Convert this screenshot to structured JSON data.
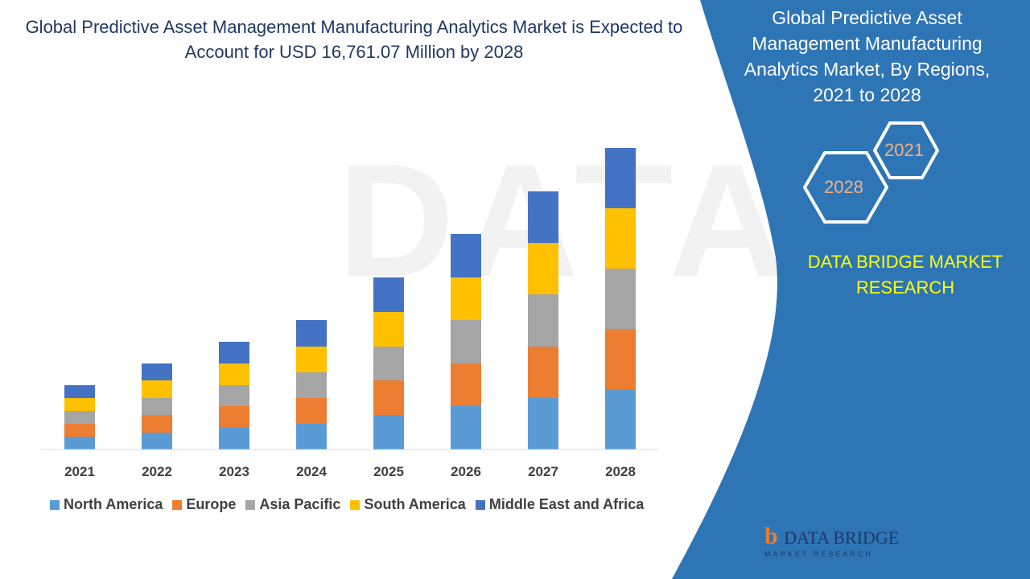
{
  "title": "Global Predictive Asset Management Manufacturing Analytics Market is Expected to Account for USD 16,761.07 Million by 2028",
  "panel": {
    "title": "Global Predictive Asset Management Manufacturing Analytics Market, By Regions, 2021 to 2028",
    "hex_a": "2021",
    "hex_b": "2028",
    "brand": "DATA BRIDGE MARKET RESEARCH",
    "logo_text": "DATA BRIDGE",
    "logo_sub": "MARKET RESEARCH",
    "color": "#2e75b6"
  },
  "chart_data": {
    "type": "bar",
    "stacked": true,
    "title": "",
    "xlabel": "",
    "ylabel": "",
    "grid": false,
    "legend": "bottom",
    "categories": [
      "2021",
      "2022",
      "2023",
      "2024",
      "2025",
      "2026",
      "2027",
      "2028"
    ],
    "series": [
      {
        "name": "North America",
        "color": "#5b9bd5",
        "values": [
          16,
          21,
          27,
          32,
          43,
          54,
          64,
          75
        ]
      },
      {
        "name": "Europe",
        "color": "#ed7d31",
        "values": [
          16,
          22,
          27,
          32,
          43,
          53,
          64,
          75
        ]
      },
      {
        "name": "Asia Pacific",
        "color": "#a5a5a5",
        "values": [
          16,
          21,
          26,
          32,
          42,
          54,
          65,
          75
        ]
      },
      {
        "name": "South America",
        "color": "#ffc000",
        "values": [
          16,
          22,
          27,
          32,
          43,
          53,
          64,
          75
        ]
      },
      {
        "name": "Middle East and Africa",
        "color": "#4472c4",
        "values": [
          16,
          21,
          27,
          33,
          43,
          54,
          64,
          75
        ]
      }
    ]
  }
}
